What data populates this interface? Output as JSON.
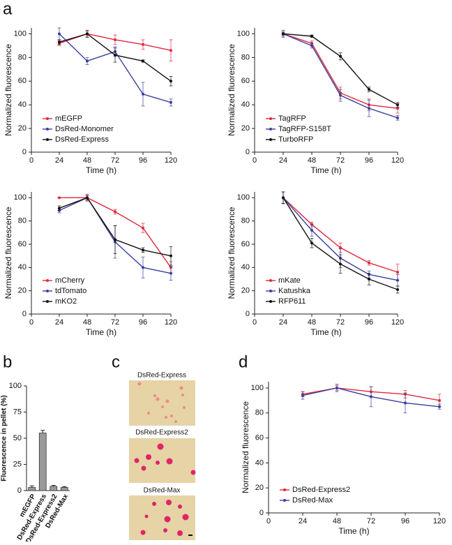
{
  "chart_data": [
    {
      "type": "line",
      "panel": "a",
      "x": [
        24,
        48,
        72,
        96,
        120
      ],
      "xlim": [
        0,
        120
      ],
      "xticks": [
        0,
        24,
        48,
        72,
        96,
        120
      ],
      "ylim": [
        0,
        105
      ],
      "yticks": [
        0,
        20,
        40,
        60,
        80,
        100
      ],
      "xlabel": "Time (h)",
      "ylabel": "Normalized fluorescence",
      "legend": "lower left",
      "series": [
        {
          "name": "mEGFP",
          "color": "#e0283c",
          "values": [
            92,
            100,
            95,
            91,
            86
          ],
          "errors": [
            2,
            2,
            4,
            4,
            9
          ]
        },
        {
          "name": "DsRed-Monomer",
          "color": "#3a3f9e",
          "values": [
            100,
            77,
            85,
            49,
            42
          ],
          "errors": [
            5,
            3,
            4,
            10,
            3
          ]
        },
        {
          "name": "DsRed-Express",
          "color": "#111111",
          "values": [
            93,
            100,
            82,
            77,
            60
          ],
          "errors": [
            2,
            3,
            6,
            1,
            4
          ]
        }
      ]
    },
    {
      "type": "line",
      "x": [
        24,
        48,
        72,
        96,
        120
      ],
      "xlim": [
        0,
        120
      ],
      "xticks": [
        0,
        24,
        48,
        72,
        96,
        120
      ],
      "ylim": [
        0,
        105
      ],
      "yticks": [
        0,
        20,
        40,
        60,
        80,
        100
      ],
      "xlabel": "Time (h)",
      "ylabel": "Normalized fluorescence",
      "legend": "lower left",
      "series": [
        {
          "name": "TagRFP",
          "color": "#e0283c",
          "values": [
            100,
            92,
            50,
            40,
            37
          ],
          "errors": [
            2,
            2,
            5,
            5,
            4
          ]
        },
        {
          "name": "TagRFP-S158T",
          "color": "#3a3f9e",
          "values": [
            100,
            90,
            48,
            37,
            29
          ],
          "errors": [
            3,
            2,
            5,
            7,
            2
          ]
        },
        {
          "name": "TurboRFP",
          "color": "#111111",
          "values": [
            100,
            98,
            81,
            53,
            40
          ],
          "errors": [
            1,
            1,
            3,
            2,
            2
          ]
        }
      ]
    },
    {
      "type": "line",
      "x": [
        24,
        48,
        72,
        96,
        120
      ],
      "xlim": [
        0,
        120
      ],
      "xticks": [
        0,
        24,
        48,
        72,
        96,
        120
      ],
      "ylim": [
        0,
        105
      ],
      "yticks": [
        0,
        20,
        40,
        60,
        80,
        100
      ],
      "xlabel": "Time (h)",
      "ylabel": "Normalized fluorescence",
      "legend": "lower left",
      "series": [
        {
          "name": "mCherry",
          "color": "#e0283c",
          "values": [
            100,
            100,
            88,
            74,
            40
          ],
          "errors": [
            0,
            3,
            2,
            4,
            5
          ]
        },
        {
          "name": "tdTomato",
          "color": "#3a3f9e",
          "values": [
            89,
            100,
            62,
            40,
            35
          ],
          "errors": [
            2,
            2,
            14,
            9,
            6
          ]
        },
        {
          "name": "mKO2",
          "color": "#111111",
          "values": [
            91,
            100,
            64,
            55,
            50
          ],
          "errors": [
            2,
            2,
            12,
            2,
            8
          ]
        }
      ]
    },
    {
      "type": "line",
      "x": [
        24,
        48,
        72,
        96,
        120
      ],
      "xlim": [
        0,
        120
      ],
      "xticks": [
        0,
        24,
        48,
        72,
        96,
        120
      ],
      "ylim": [
        0,
        105
      ],
      "yticks": [
        0,
        20,
        40,
        60,
        80,
        100
      ],
      "xlabel": "Time (h)",
      "ylabel": "Normalized fluorescence",
      "legend": "lower left",
      "series": [
        {
          "name": "mKate",
          "color": "#e0283c",
          "values": [
            100,
            77,
            57,
            44,
            36
          ],
          "errors": [
            5,
            2,
            4,
            2,
            7
          ]
        },
        {
          "name": "Katushka",
          "color": "#3a3f9e",
          "values": [
            100,
            72,
            48,
            34,
            29
          ],
          "errors": [
            5,
            5,
            8,
            3,
            5
          ]
        },
        {
          "name": "RFP611",
          "color": "#111111",
          "values": [
            100,
            61,
            43,
            30,
            21
          ],
          "errors": [
            5,
            4,
            8,
            5,
            3
          ]
        }
      ]
    },
    {
      "type": "bar",
      "panel": "b",
      "categories": [
        "mEGFP",
        "DsRed-Express",
        "DsRed-Express2",
        "DsRed-Max"
      ],
      "values": [
        3,
        55,
        4,
        3
      ],
      "errors": [
        1.5,
        2.5,
        1,
        0.8
      ],
      "color": "#9a9a9a",
      "ylim": [
        0,
        100
      ],
      "yticks": [
        0,
        25,
        50,
        75,
        100
      ],
      "ylabel": "Fluorescence in pellet (%)"
    },
    {
      "type": "line",
      "panel": "d",
      "x": [
        24,
        48,
        72,
        96,
        120
      ],
      "xlim": [
        0,
        120
      ],
      "xticks": [
        0,
        24,
        48,
        72,
        96,
        120
      ],
      "ylim": [
        0,
        105
      ],
      "yticks": [
        0,
        20,
        40,
        60,
        80,
        100
      ],
      "xlabel": "Time (h)",
      "ylabel": "Normalized fluorescence",
      "legend": "lower left",
      "series": [
        {
          "name": "DsRed-Express2",
          "color": "#e0283c",
          "values": [
            95,
            100,
            97,
            95,
            90
          ],
          "errors": [
            2,
            2,
            4,
            3,
            5
          ]
        },
        {
          "name": "DsRed-Max",
          "color": "#3a3f9e",
          "values": [
            94,
            100,
            93,
            88,
            85
          ],
          "errors": [
            3,
            3,
            8,
            8,
            2
          ]
        }
      ]
    }
  ],
  "panel_c": {
    "panel": "c",
    "images": [
      "DsRed-Express",
      "DsRed-Express2",
      "DsRed-Max"
    ]
  }
}
